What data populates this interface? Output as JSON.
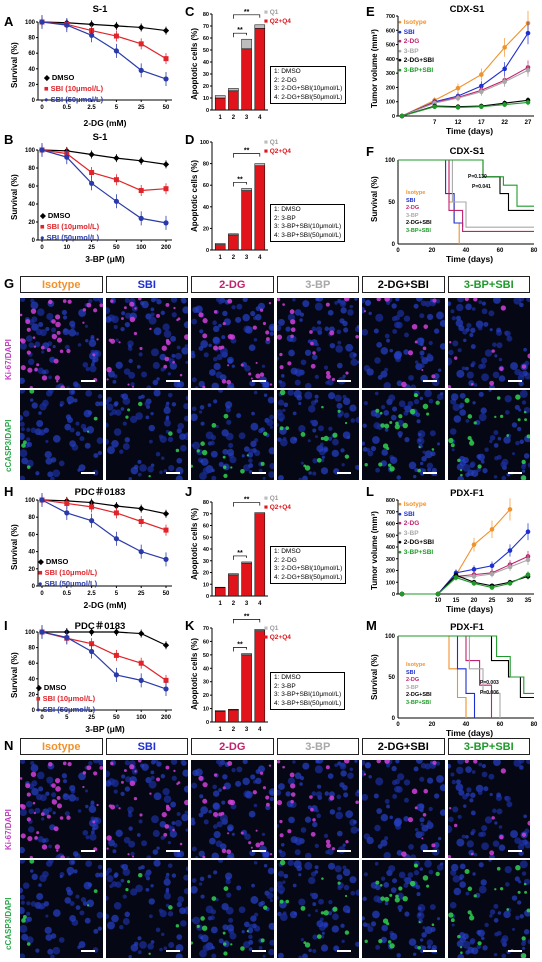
{
  "labels": {
    "A": "A",
    "B": "B",
    "C": "C",
    "D": "D",
    "E": "E",
    "F": "F",
    "G": "G",
    "H": "H",
    "I": "I",
    "J": "J",
    "K": "K",
    "L": "L",
    "M": "M",
    "N": "N"
  },
  "panelA": {
    "title": "S-1",
    "ylabel": "Survival (%)",
    "xlabel": "2-DG (mM)",
    "legend": [
      "DMSO",
      "SBI (10μmol/L)",
      "SBI (50μmol/L)"
    ]
  },
  "panelB": {
    "title": "S-1",
    "ylabel": "Survival (%)",
    "xlabel": "3-BP (μM)",
    "legend": [
      "DMSO",
      "SBI (10μmol/L)",
      "SBI (50μmol/L)"
    ]
  },
  "panelH": {
    "title": "PDC＃0183",
    "ylabel": "Survival (%)",
    "xlabel": "2-DG (mM)",
    "legend": [
      "DMSO",
      "SBI (10μmol/L)",
      "SBI (50μmol/L)"
    ]
  },
  "panelI": {
    "title": "PDC＃0183",
    "ylabel": "Survival (%)",
    "xlabel": "3-BP (μM)",
    "legend": [
      "DMSO",
      "SBI (10μmol/L)",
      "SBI (50μmol/L)"
    ]
  },
  "panelC": {
    "ylabel": "Apoptotic cells (%)",
    "legend": [
      "Q1",
      "Q2+Q4"
    ],
    "sig": "**",
    "box": [
      "1: DMSO",
      "2: 2-DG",
      "3: 2-DG+SBI(10μmol/L)",
      "4: 2-DG+SBI(50μmol/L)"
    ]
  },
  "panelD": {
    "ylabel": "Apoptotic cells (%)",
    "legend": [
      "Q1",
      "Q2+Q4"
    ],
    "sig": "**",
    "box": [
      "1: DMSO",
      "2: 3-BP",
      "3: 3-BP+SBI(10μmol/L)",
      "4: 3-BP+SBI(50μmol/L)"
    ]
  },
  "panelJ": {
    "ylabel": "Apoptotic cells (%)",
    "legend": [
      "Q1",
      "Q2+Q4"
    ],
    "sig": "**",
    "box": [
      "1: DMSO",
      "2: 2-DG",
      "3: 2-DG+SBI(10μmol/L)",
      "4: 2-DG+SBI(50μmol/L)"
    ]
  },
  "panelK": {
    "ylabel": "Apoptotic cells (%)",
    "legend": [
      "Q1",
      "Q2+Q4"
    ],
    "sig": "**",
    "box": [
      "1: DMSO",
      "2: 3-BP",
      "3: 3-BP+SBI(10μmol/L)",
      "4: 3-BP+SBI(50μmol/L)"
    ]
  },
  "panelE": {
    "title": "CDX-S1",
    "ylabel": "Tumor volume (mm³)",
    "xlabel": "Time (days)",
    "legend": [
      "Isotype",
      "SBI",
      "2-DG",
      "3-BP",
      "2-DG+SBI",
      "3-BP+SBI"
    ]
  },
  "panelL": {
    "title": "PDX-F1",
    "ylabel": "Tumor volume (mm³)",
    "xlabel": "Time (days)",
    "legend": [
      "Isotype",
      "SBI",
      "2-DG",
      "3-BP",
      "2-DG+SBI",
      "3-BP+SBI"
    ]
  },
  "panelF": {
    "title": "CDX-S1",
    "ylabel": "Survival (%)",
    "xlabel": "Time (days)",
    "legend": [
      "Isotype",
      "SBI",
      "2-DG",
      "3-BP",
      "2-DG+SBI",
      "3-BP+SBI"
    ],
    "p1": "P=0.130",
    "p2": "P=0.041"
  },
  "panelM": {
    "title": "PDX-F1",
    "ylabel": "Survival (%)",
    "xlabel": "Time (days)",
    "legend": [
      "Isotype",
      "SBI",
      "2-DG",
      "3-BP",
      "2-DG+SBI",
      "3-BP+SBI"
    ],
    "p1": "P=0.003",
    "p2": "P=0.006"
  },
  "panelG": {
    "headers": [
      "Isotype",
      "SBI",
      "2-DG",
      "3-BP",
      "2-DG+SBI",
      "3-BP+SBI"
    ],
    "row1": "Ki-67/DAPI",
    "row2": "cCASP3/DAPI"
  },
  "panelN": {
    "headers": [
      "Isotype",
      "SBI",
      "2-DG",
      "3-BP",
      "2-DG+SBI",
      "3-BP+SBI"
    ],
    "row1": "Ki-67/DAPI",
    "row2": "cCASP3/DAPI"
  },
  "colors": {
    "dmso": "#000000",
    "sbi10": "#e0242a",
    "sbi50": "#2a3aa8",
    "isotype": "#f0922c",
    "sbi": "#1e2fd0",
    "dg": "#c0226e",
    "bp": "#a8a8a8",
    "dgsbi": "#000000",
    "bpsbi": "#1f9a2a",
    "q1": "#bdbdbd",
    "q24": "#e0141a"
  },
  "chart_data": [
    {
      "id": "A",
      "type": "line",
      "title": "S-1",
      "xlabel": "2-DG (mM)",
      "ylabel": "Survival (%)",
      "categories": [
        "0",
        "0.5",
        "2.5",
        "5",
        "25",
        "50"
      ],
      "ylim": [
        0,
        100
      ],
      "series": [
        {
          "name": "DMSO",
          "values": [
            100,
            99,
            97,
            95,
            93,
            89
          ]
        },
        {
          "name": "SBI (10μmol/L)",
          "values": [
            100,
            97,
            89,
            82,
            72,
            53
          ]
        },
        {
          "name": "SBI (50μmol/L)",
          "values": [
            100,
            96,
            83,
            63,
            38,
            27
          ]
        }
      ]
    },
    {
      "id": "B",
      "type": "line",
      "title": "S-1",
      "xlabel": "3-BP (μM)",
      "ylabel": "Survival (%)",
      "categories": [
        "0",
        "10",
        "25",
        "50",
        "100",
        "200"
      ],
      "ylim": [
        0,
        100
      ],
      "series": [
        {
          "name": "DMSO",
          "values": [
            100,
            99,
            95,
            91,
            88,
            84
          ]
        },
        {
          "name": "SBI (10μmol/L)",
          "values": [
            100,
            96,
            75,
            67,
            55,
            57
          ]
        },
        {
          "name": "SBI (50μmol/L)",
          "values": [
            100,
            92,
            63,
            43,
            24,
            19
          ]
        }
      ]
    },
    {
      "id": "H",
      "type": "line",
      "title": "PDC＃0183",
      "xlabel": "2-DG (mM)",
      "ylabel": "Survival (%)",
      "categories": [
        "0",
        "0.5",
        "2.5",
        "5",
        "25",
        "50"
      ],
      "ylim": [
        0,
        100
      ],
      "series": [
        {
          "name": "DMSO",
          "values": [
            100,
            99,
            97,
            93,
            90,
            84
          ]
        },
        {
          "name": "SBI (10μmol/L)",
          "values": [
            100,
            96,
            92,
            85,
            75,
            65
          ]
        },
        {
          "name": "SBI (50μmol/L)",
          "values": [
            100,
            85,
            76,
            55,
            40,
            31
          ]
        }
      ]
    },
    {
      "id": "I",
      "type": "line",
      "title": "PDC＃0183",
      "xlabel": "3-BP (μM)",
      "ylabel": "Survival (%)",
      "categories": [
        "0",
        "5",
        "25",
        "50",
        "100",
        "200"
      ],
      "ylim": [
        0,
        100
      ],
      "series": [
        {
          "name": "DMSO",
          "values": [
            100,
            100,
            100,
            100,
            98,
            83
          ]
        },
        {
          "name": "SBI (10μmol/L)",
          "values": [
            100,
            92,
            85,
            70,
            60,
            38
          ]
        },
        {
          "name": "SBI (50μmol/L)",
          "values": [
            100,
            93,
            75,
            45,
            38,
            27
          ]
        }
      ]
    },
    {
      "id": "C",
      "type": "bar",
      "ylabel": "Apoptotic cells (%)",
      "categories": [
        "1",
        "2",
        "3",
        "4"
      ],
      "ylim": [
        0,
        80
      ],
      "series": [
        {
          "name": "Q2+Q4",
          "values": [
            10,
            16,
            51,
            68
          ]
        },
        {
          "name": "Q1",
          "values": [
            2,
            2,
            8,
            3
          ]
        }
      ]
    },
    {
      "id": "D",
      "type": "bar",
      "ylabel": "Apoptotic cells (%)",
      "categories": [
        "1",
        "2",
        "3",
        "4"
      ],
      "ylim": [
        0,
        100
      ],
      "series": [
        {
          "name": "Q2+Q4",
          "values": [
            5,
            14,
            55,
            78
          ]
        },
        {
          "name": "Q1",
          "values": [
            1,
            1,
            2,
            2
          ]
        }
      ]
    },
    {
      "id": "J",
      "type": "bar",
      "ylabel": "Apoptotic cells (%)",
      "categories": [
        "1",
        "2",
        "3",
        "4"
      ],
      "ylim": [
        0,
        80
      ],
      "series": [
        {
          "name": "Q2+Q4",
          "values": [
            7,
            18,
            28,
            70
          ]
        },
        {
          "name": "Q1",
          "values": [
            0.5,
            1,
            1,
            1
          ]
        }
      ]
    },
    {
      "id": "K",
      "type": "bar",
      "ylabel": "Apoptotic cells (%)",
      "categories": [
        "1",
        "2",
        "3",
        "4"
      ],
      "ylim": [
        0,
        70
      ],
      "series": [
        {
          "name": "Q2+Q4",
          "values": [
            8,
            9,
            50,
            68
          ]
        },
        {
          "name": "Q1",
          "values": [
            0.5,
            0.5,
            1,
            1
          ]
        }
      ]
    },
    {
      "id": "E",
      "type": "line",
      "title": "CDX-S1",
      "xlabel": "Time (days)",
      "ylabel": "Tumor volume (mm³)",
      "x": [
        0,
        7,
        12,
        17,
        22,
        27
      ],
      "ylim": [
        0,
        700
      ],
      "series": [
        {
          "name": "Isotype",
          "values": [
            0,
            110,
            195,
            290,
            480,
            650
          ]
        },
        {
          "name": "SBI",
          "values": [
            0,
            100,
            140,
            210,
            330,
            580
          ]
        },
        {
          "name": "2-DG",
          "values": [
            0,
            95,
            130,
            180,
            250,
            340
          ]
        },
        {
          "name": "3-BP",
          "values": [
            0,
            90,
            125,
            170,
            240,
            320
          ]
        },
        {
          "name": "2-DG+SBI",
          "values": [
            0,
            70,
            65,
            70,
            90,
            110
          ]
        },
        {
          "name": "3-BP+SBI",
          "values": [
            0,
            65,
            60,
            65,
            80,
            95
          ]
        }
      ]
    },
    {
      "id": "L",
      "type": "line",
      "title": "PDX-F1",
      "xlabel": "Time (days)",
      "ylabel": "Tumor volume (mm³)",
      "x": [
        0,
        10,
        15,
        20,
        25,
        30,
        35
      ],
      "ylim": [
        0,
        800
      ],
      "series": [
        {
          "name": "Isotype",
          "values": [
            0,
            0,
            160,
            420,
            550,
            720,
            null
          ]
        },
        {
          "name": "SBI",
          "values": [
            0,
            0,
            180,
            210,
            240,
            370,
            530
          ]
        },
        {
          "name": "2-DG",
          "values": [
            0,
            0,
            150,
            165,
            180,
            250,
            320
          ]
        },
        {
          "name": "3-BP",
          "values": [
            0,
            0,
            140,
            150,
            170,
            230,
            290
          ]
        },
        {
          "name": "2-DG+SBI",
          "values": [
            0,
            0,
            160,
            100,
            70,
            100,
            150
          ]
        },
        {
          "name": "3-BP+SBI",
          "values": [
            0,
            0,
            140,
            90,
            55,
            90,
            165
          ]
        }
      ]
    },
    {
      "id": "F",
      "type": "line",
      "title": "CDX-S1",
      "xlabel": "Time (days)",
      "ylabel": "Survival (%)",
      "xlim": [
        0,
        80
      ],
      "ylim": [
        0,
        100
      ],
      "series": [
        {
          "name": "Isotype",
          "x": [
            0,
            30,
            33,
            36
          ],
          "values": [
            100,
            50,
            25,
            0
          ]
        },
        {
          "name": "SBI",
          "x": [
            0,
            28,
            33,
            38
          ],
          "values": [
            100,
            60,
            25,
            20
          ]
        },
        {
          "name": "2-DG",
          "x": [
            0,
            30,
            38,
            80
          ],
          "values": [
            100,
            40,
            15,
            15
          ]
        },
        {
          "name": "3-BP",
          "x": [
            0,
            32,
            40,
            80
          ],
          "values": [
            100,
            50,
            20,
            20
          ]
        },
        {
          "name": "2-DG+SBI",
          "x": [
            0,
            50,
            60,
            65,
            80
          ],
          "values": [
            100,
            80,
            60,
            40,
            40
          ]
        },
        {
          "name": "3-BP+SBI",
          "x": [
            0,
            50,
            62,
            70,
            80
          ],
          "values": [
            100,
            80,
            70,
            45,
            45
          ]
        }
      ]
    },
    {
      "id": "M",
      "type": "line",
      "title": "PDX-F1",
      "xlabel": "Time (days)",
      "ylabel": "Survival (%)",
      "xlim": [
        0,
        80
      ],
      "ylim": [
        0,
        100
      ],
      "series": [
        {
          "name": "Isotype",
          "x": [
            0,
            30,
            35,
            40
          ],
          "values": [
            100,
            60,
            25,
            0
          ]
        },
        {
          "name": "SBI",
          "x": [
            0,
            35,
            40,
            45
          ],
          "values": [
            100,
            60,
            30,
            0
          ]
        },
        {
          "name": "2-DG",
          "x": [
            0,
            40,
            48,
            55
          ],
          "values": [
            100,
            70,
            40,
            0
          ]
        },
        {
          "name": "3-BP",
          "x": [
            0,
            42,
            50,
            60
          ],
          "values": [
            100,
            60,
            30,
            0
          ]
        },
        {
          "name": "2-DG+SBI",
          "x": [
            0,
            55,
            65,
            72,
            80
          ],
          "values": [
            100,
            70,
            50,
            25,
            25
          ]
        },
        {
          "name": "3-BP+SBI",
          "x": [
            0,
            58,
            66,
            74,
            80
          ],
          "values": [
            100,
            75,
            50,
            30,
            30
          ]
        }
      ]
    }
  ]
}
